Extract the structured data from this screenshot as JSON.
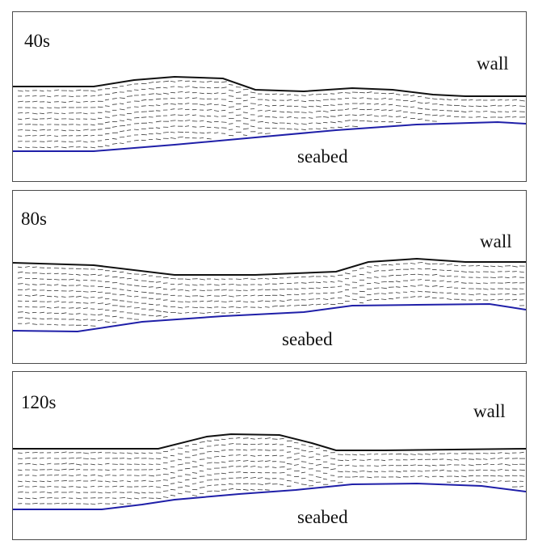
{
  "panels": [
    {
      "time_label": "40s",
      "wall_label": "wall",
      "seabed_label": "seabed"
    },
    {
      "time_label": "80s",
      "wall_label": "wall",
      "seabed_label": "seabed"
    },
    {
      "time_label": "120s",
      "wall_label": "wall",
      "seabed_label": "seabed"
    }
  ],
  "colors": {
    "wall_line": "#111111",
    "seabed_line": "#1f1fa8",
    "vectors": "#3a3a3a",
    "frame": "#4a4a4a"
  }
}
